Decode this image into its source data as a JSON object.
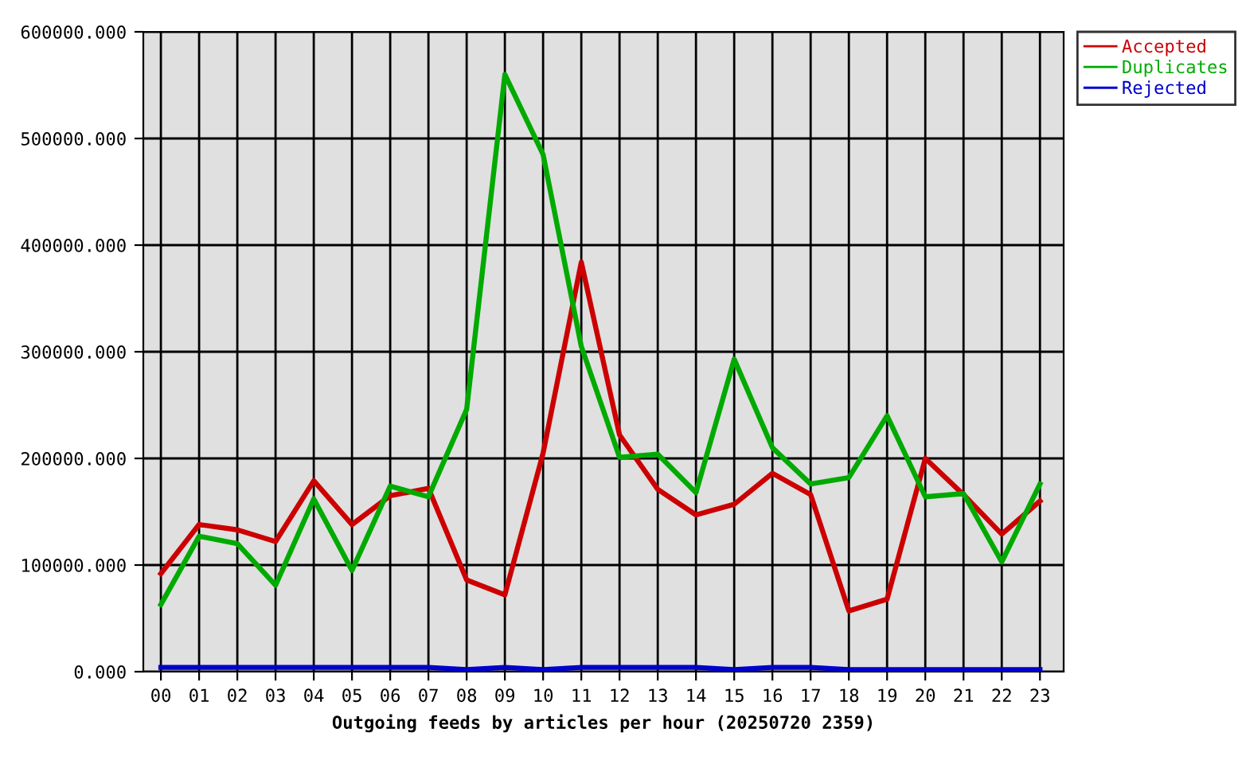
{
  "chart_data": {
    "type": "line",
    "xlabel": "Outgoing feeds by articles per hour (20250720 2359)",
    "categories": [
      "00",
      "01",
      "02",
      "03",
      "04",
      "05",
      "06",
      "07",
      "08",
      "09",
      "10",
      "11",
      "12",
      "13",
      "14",
      "15",
      "16",
      "17",
      "18",
      "19",
      "20",
      "21",
      "22",
      "23"
    ],
    "series": [
      {
        "name": "Accepted",
        "color": "#cc0000",
        "values": [
          92000,
          138000,
          133000,
          122000,
          179000,
          138000,
          165000,
          172000,
          86000,
          72000,
          205000,
          384000,
          222000,
          171000,
          147000,
          157000,
          186000,
          166000,
          57000,
          68000,
          200000,
          166000,
          129000,
          160000
        ]
      },
      {
        "name": "Duplicates",
        "color": "#00aa00",
        "values": [
          63000,
          127000,
          120000,
          81000,
          162000,
          95000,
          174000,
          164000,
          246000,
          560000,
          485000,
          305000,
          201000,
          204000,
          168000,
          293000,
          210000,
          176000,
          182000,
          240000,
          164000,
          167000,
          103000,
          176000
        ]
      },
      {
        "name": "Rejected",
        "color": "#0000cc",
        "values": [
          4000,
          4000,
          4000,
          4000,
          4000,
          4000,
          4000,
          4000,
          2000,
          4000,
          2000,
          4000,
          4000,
          4000,
          4000,
          2000,
          4000,
          4000,
          2000,
          2000,
          2000,
          2000,
          2000,
          2000
        ]
      }
    ],
    "ylim": [
      0,
      600000
    ],
    "yticks": [
      {
        "value": 0,
        "label": "0.000"
      },
      {
        "value": 100000,
        "label": "100000.000"
      },
      {
        "value": 200000,
        "label": "200000.000"
      },
      {
        "value": 300000,
        "label": "300000.000"
      },
      {
        "value": 400000,
        "label": "400000.000"
      },
      {
        "value": 500000,
        "label": "500000.000"
      },
      {
        "value": 600000,
        "label": "600000.000"
      }
    ],
    "grid": true,
    "legend": "top right",
    "line_style": "solid"
  }
}
